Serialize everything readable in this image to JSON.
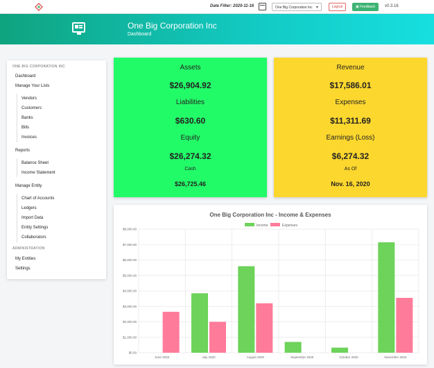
{
  "topbar": {
    "date_filter": "Date Filter: 2020-11-16",
    "entity_selected": "One Big Corporation Inc",
    "logout_label": "Logout",
    "feedback_label": "Feedback",
    "version": "v0.3.16"
  },
  "header": {
    "title": "One Big Corporation Inc",
    "subtitle": "Dashboard"
  },
  "sidebar": {
    "section1": "ONE BIG CORPORATION INC",
    "dashboard": "Dashboard",
    "manage_lists": "Manage Your Lists",
    "lists": [
      "Vendors",
      "Customers",
      "Banks",
      "Bills",
      "Invoices"
    ],
    "reports": "Reports",
    "report_items": [
      "Balance Sheet",
      "Income Statement"
    ],
    "manage_entity": "Manage Entity",
    "entity_items": [
      "Chart of Accounts",
      "Ledgers",
      "Import Data",
      "Entity Settings",
      "Collaborators"
    ],
    "section2": "ADMINISTRATION",
    "admin_items": [
      "My Entities",
      "Settings"
    ]
  },
  "green_card": {
    "assets_label": "Assets",
    "assets_value": "$26,904.92",
    "liabilities_label": "Liabilities",
    "liabilities_value": "$630.60",
    "equity_label": "Equity",
    "equity_value": "$26,274.32",
    "cash_label": "Cash",
    "cash_value": "$26,725.46"
  },
  "yellow_card": {
    "revenue_label": "Revenue",
    "revenue_value": "$17,586.01",
    "expenses_label": "Expenses",
    "expenses_value": "$11,311.69",
    "earnings_label": "Earnings (Loss)",
    "earnings_value": "$6,274.32",
    "asof_label": "As Of",
    "asof_value": "Nov. 16, 2020"
  },
  "colors": {
    "income": "#6dd35a",
    "expenses": "#ff7b9a",
    "green_card": "#22fb68",
    "yellow_card": "#fcd72e",
    "feedback": "#3cb371"
  },
  "chart_data": {
    "type": "bar",
    "title": "One Big Corporation Inc - Income & Expenses",
    "categories": [
      "June 2020",
      "July 2020",
      "August 2020",
      "September 2020",
      "October 2020",
      "November 2020"
    ],
    "series": [
      {
        "name": "Income",
        "values": [
          0,
          3850,
          5600,
          700,
          330,
          7150
        ]
      },
      {
        "name": "Expenses",
        "values": [
          2650,
          2000,
          3200,
          0,
          0,
          3550
        ]
      }
    ],
    "ylim": [
      0,
      8000
    ],
    "yticks": [
      "$0.00",
      "$1,000.00",
      "$2,000.00",
      "$3,000.00",
      "$4,000.00",
      "$5,000.00",
      "$6,000.00",
      "$7,000.00",
      "$8,000.00"
    ],
    "legend": "top-center",
    "grid": true
  }
}
